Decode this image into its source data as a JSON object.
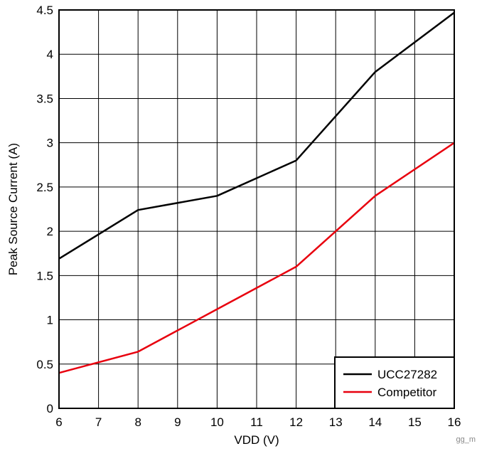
{
  "chart_data": {
    "type": "line",
    "title": "",
    "xlabel": "VDD (V)",
    "ylabel": "Peak Source Current (A)",
    "xlim": [
      6,
      16
    ],
    "ylim": [
      0,
      4.5
    ],
    "xticks": [
      6,
      7,
      8,
      9,
      10,
      11,
      12,
      13,
      14,
      15,
      16
    ],
    "yticks": [
      0,
      0.5,
      1,
      1.5,
      2,
      2.5,
      3,
      3.5,
      4,
      4.5
    ],
    "grid": true,
    "legend_position": "bottom-right",
    "series": [
      {
        "name": "UCC27282",
        "color": "#000000",
        "x": [
          6,
          8,
          10,
          12,
          14,
          16
        ],
        "y": [
          1.69,
          2.24,
          2.4,
          2.8,
          3.8,
          4.47
        ]
      },
      {
        "name": "Competitor",
        "color": "#e8000e",
        "x": [
          6,
          8,
          10,
          12,
          14,
          16
        ],
        "y": [
          0.4,
          0.64,
          1.12,
          1.6,
          2.4,
          3.0
        ]
      }
    ],
    "watermark": "gg_m"
  }
}
